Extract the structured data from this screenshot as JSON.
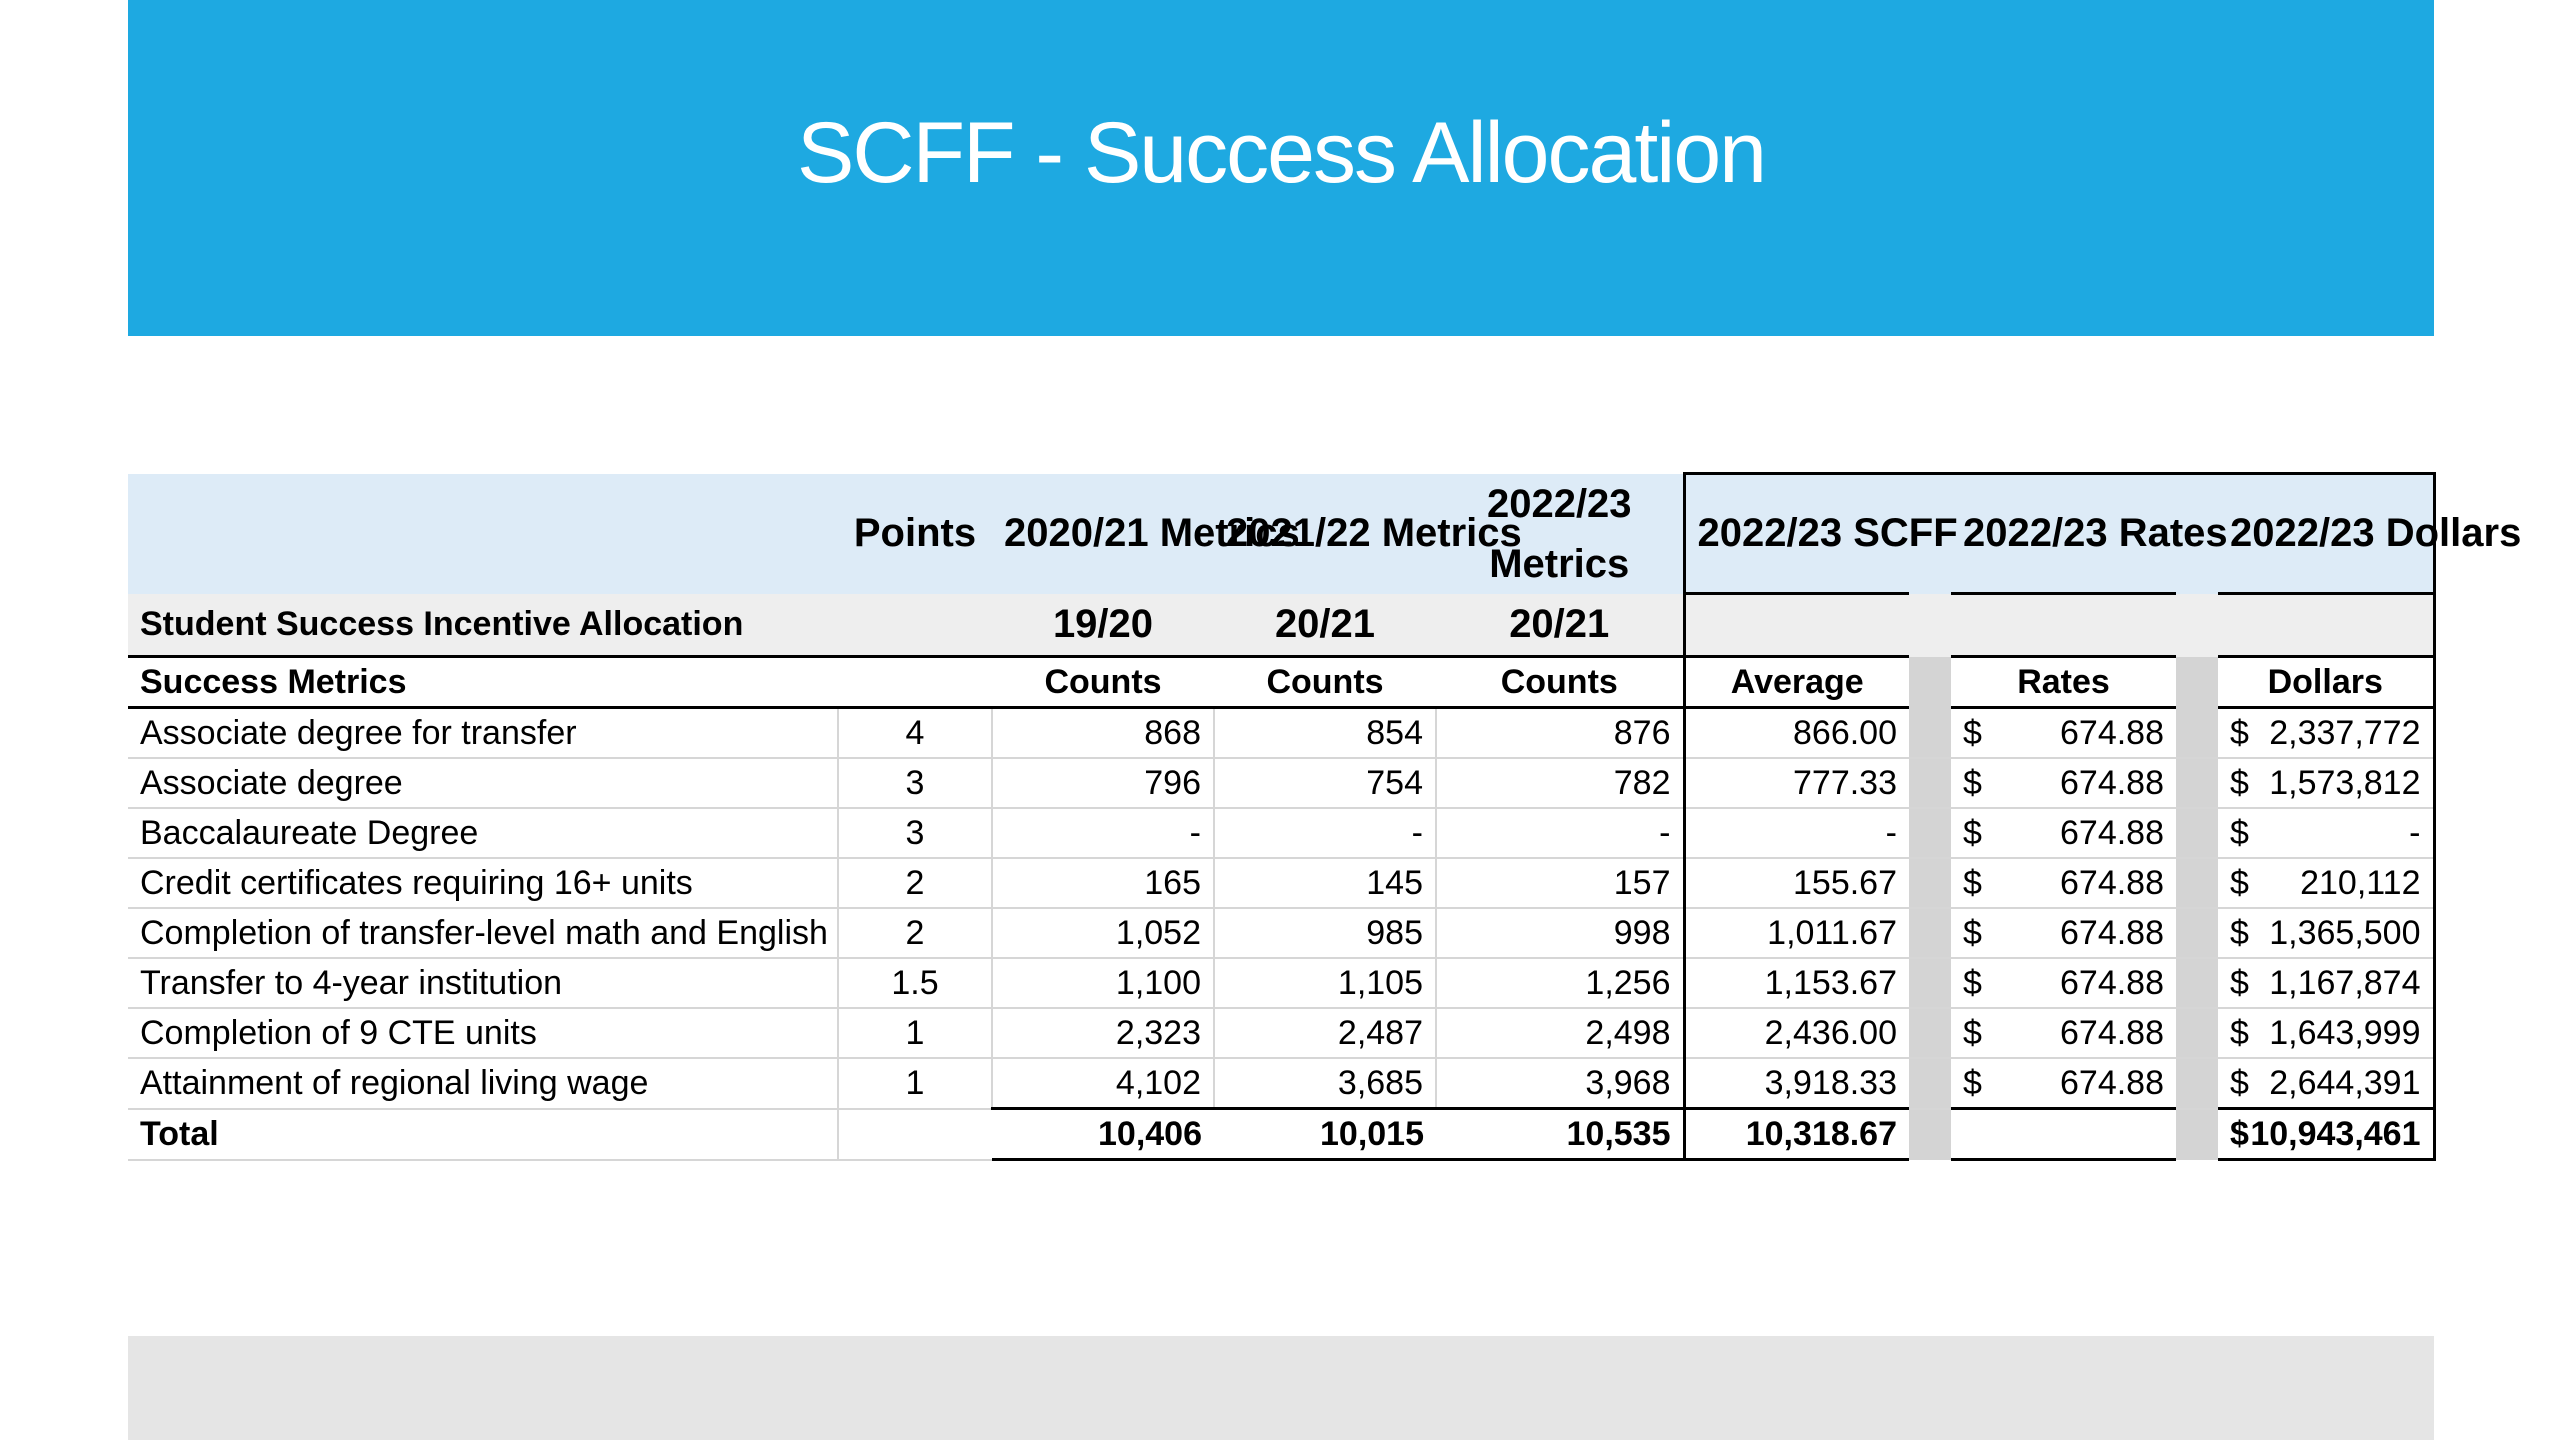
{
  "title": "SCFF - Success Allocation",
  "table": {
    "header_row1": {
      "points": "Points",
      "m1": "2020/21 Metrics",
      "m2": "2021/22 Metrics",
      "m3": "2022/23 Metrics",
      "scff": "2022/23 SCFF",
      "rates": "2022/23 Rates",
      "dollars": "2022/23 Dollars"
    },
    "header_row2": {
      "label": "Student Success Incentive Allocation",
      "p1": "19/20",
      "p2": "20/21",
      "p3": "20/21"
    },
    "header_row3": {
      "label": "Success Metrics",
      "c1": "Counts",
      "c2": "Counts",
      "c3": "Counts",
      "avg": "Average",
      "rates": "Rates",
      "dollars": "Dollars"
    },
    "rows": [
      {
        "metric": "Associate degree for transfer",
        "points": "4",
        "y1": "868",
        "y2": "854",
        "y3": "876",
        "avg": "866.00",
        "rate_sym": "$",
        "rate": "674.88",
        "dollar_sym": "$",
        "dollars": "2,337,772"
      },
      {
        "metric": "Associate degree",
        "points": "3",
        "y1": "796",
        "y2": "754",
        "y3": "782",
        "avg": "777.33",
        "rate_sym": "$",
        "rate": "674.88",
        "dollar_sym": "$",
        "dollars": "1,573,812"
      },
      {
        "metric": "Baccalaureate Degree",
        "points": "3",
        "y1": "-",
        "y2": "-",
        "y3": "-",
        "avg": "-",
        "rate_sym": "$",
        "rate": "674.88",
        "dollar_sym": "$",
        "dollars": "-"
      },
      {
        "metric": "Credit certificates requiring 16+ units",
        "points": "2",
        "y1": "165",
        "y2": "145",
        "y3": "157",
        "avg": "155.67",
        "rate_sym": "$",
        "rate": "674.88",
        "dollar_sym": "$",
        "dollars": "210,112"
      },
      {
        "metric": "Completion of transfer-level math and English",
        "points": "2",
        "y1": "1,052",
        "y2": "985",
        "y3": "998",
        "avg": "1,011.67",
        "rate_sym": "$",
        "rate": "674.88",
        "dollar_sym": "$",
        "dollars": "1,365,500"
      },
      {
        "metric": "Transfer to 4-year institution",
        "points": "1.5",
        "y1": "1,100",
        "y2": "1,105",
        "y3": "1,256",
        "avg": "1,153.67",
        "rate_sym": "$",
        "rate": "674.88",
        "dollar_sym": "$",
        "dollars": "1,167,874"
      },
      {
        "metric": "Completion of 9 CTE units",
        "points": "1",
        "y1": "2,323",
        "y2": "2,487",
        "y3": "2,498",
        "avg": "2,436.00",
        "rate_sym": "$",
        "rate": "674.88",
        "dollar_sym": "$",
        "dollars": "1,643,999"
      },
      {
        "metric": "Attainment of regional living wage",
        "points": "1",
        "y1": "4,102",
        "y2": "3,685",
        "y3": "3,968",
        "avg": "3,918.33",
        "rate_sym": "$",
        "rate": "674.88",
        "dollar_sym": "$",
        "dollars": "2,644,391"
      }
    ],
    "total": {
      "label": "Total",
      "y1": "10,406",
      "y2": "10,015",
      "y3": "10,535",
      "avg": "10,318.67",
      "dollar_sym": "$",
      "dollars": "10,943,461"
    }
  }
}
